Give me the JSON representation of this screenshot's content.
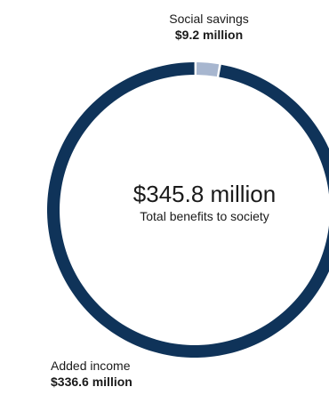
{
  "chart_data": {
    "type": "pie",
    "total": {
      "value": "$345.8 million",
      "label": "Total benefits to society"
    },
    "slices": [
      {
        "name": "Added income",
        "value": 336.6,
        "value_label": "$336.6 million",
        "color": "#0f3359"
      },
      {
        "name": "Social savings",
        "value": 9.2,
        "value_label": "$9.2 million",
        "color": "#a7b6cf"
      }
    ]
  }
}
